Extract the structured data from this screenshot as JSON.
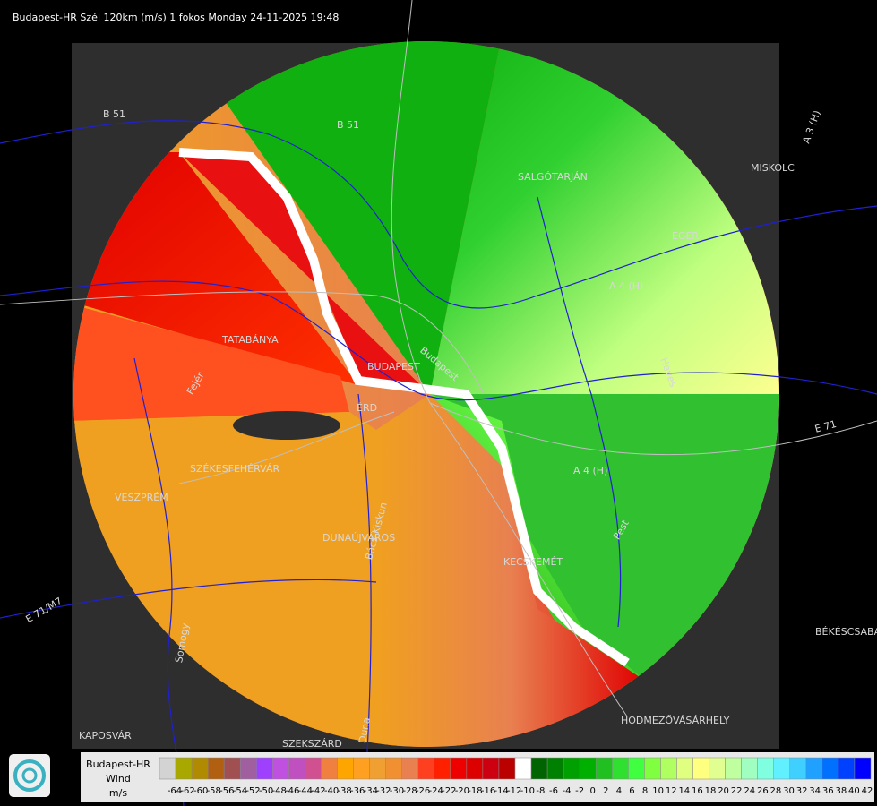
{
  "header": {
    "title": "Budapest-HR Szél 120km (m/s) 1 fokos Monday 24-11-2025 19:48"
  },
  "map_labels": [
    "B 51",
    "B 51",
    "SALGÓTARJÁN",
    "EGER",
    "MISKOLC",
    "A 3 (H)",
    "TATABÁNYA",
    "BUDAPEST",
    "ÉRD",
    "Budapest",
    "SZÉKESFEHÉRVÁR",
    "VESZPRÉM",
    "DUNAÚJVÁROS",
    "KECSKEMÉT",
    "HODMEZŐVÁSÁRHELY",
    "BÉKÉSCSABA",
    "KAPOSVÁR",
    "SZEKSZÁRD",
    "E 71/M7",
    "E 71",
    "A 4 (H)",
    "A 4 (H)",
    "Fejér",
    "Bács-Kiskun",
    "Somogy",
    "Pest",
    "Heves",
    "Duna"
  ],
  "legend": {
    "station": "Budapest-HR",
    "quantity": "Wind",
    "unit": "m/s",
    "colors": [
      "#d3d3d3",
      "#a8a800",
      "#b08a00",
      "#b06010",
      "#a05050",
      "#a060a0",
      "#a040ff",
      "#c050e0",
      "#c050c0",
      "#d05090",
      "#f08040",
      "#ffa500",
      "#ffa020",
      "#f0a030",
      "#f09030",
      "#e88050",
      "#ff4020",
      "#ff2000",
      "#ee0000",
      "#dd0000",
      "#cc0010",
      "#bb0000",
      "#ffffff",
      "#006400",
      "#008000",
      "#00a000",
      "#00b000",
      "#20c020",
      "#30e030",
      "#40ff40",
      "#80ff40",
      "#b0ff60",
      "#e0ff80",
      "#ffff80",
      "#e0ff90",
      "#c0ffa0",
      "#a0ffc0",
      "#80ffe0",
      "#60f0ff",
      "#40d0ff",
      "#20a0ff",
      "#0070ff",
      "#0040ff",
      "#0000ff"
    ],
    "ticks": [
      -64,
      -62,
      -60,
      -58,
      -56,
      -54,
      -52,
      -50,
      -48,
      -46,
      -44,
      -42,
      -40,
      -38,
      -36,
      -34,
      -32,
      -30,
      -28,
      -26,
      -24,
      -22,
      -20,
      -18,
      -16,
      -14,
      -12,
      -10,
      -8,
      -6,
      -4,
      -2,
      0,
      2,
      4,
      6,
      8,
      10,
      12,
      14,
      16,
      18,
      20,
      22,
      24,
      26,
      28,
      30,
      32,
      34,
      36,
      38,
      40,
      42
    ]
  }
}
